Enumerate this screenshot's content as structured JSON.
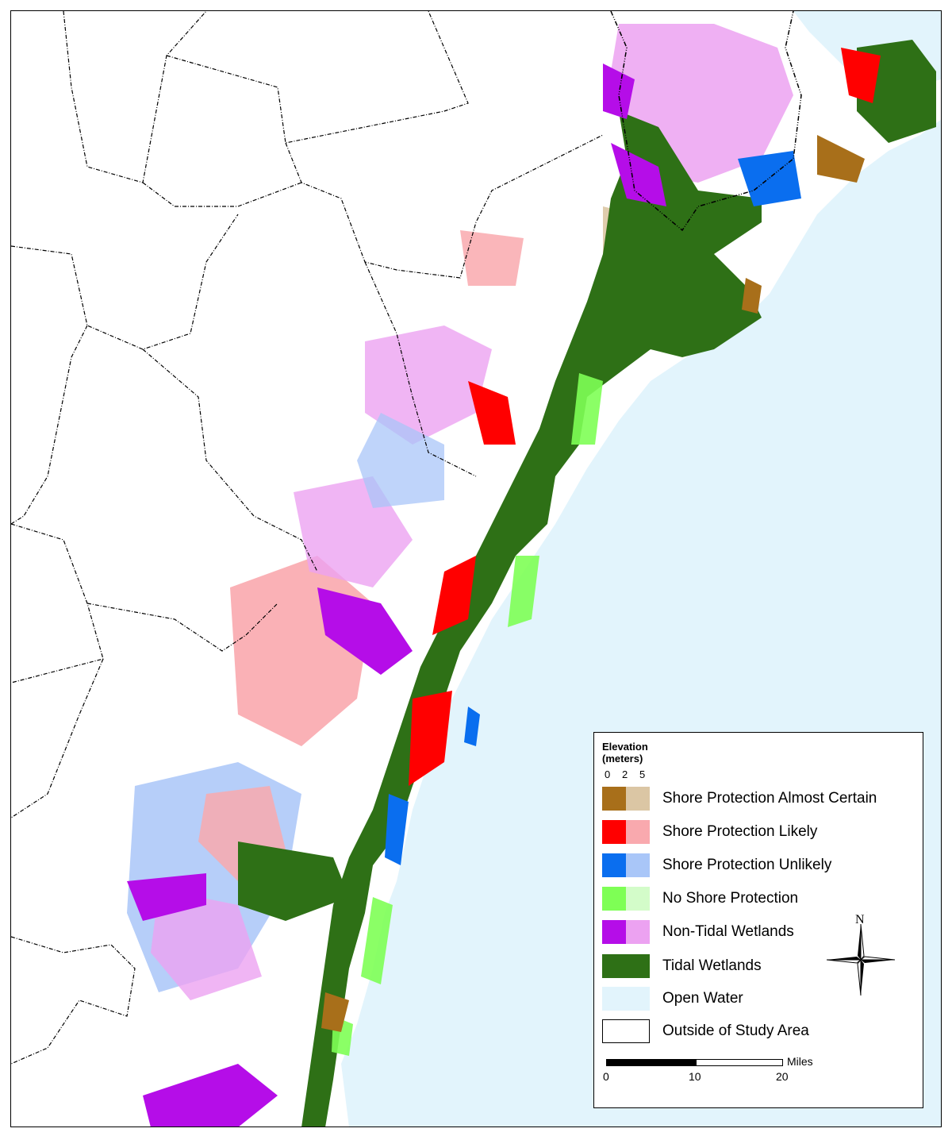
{
  "colors": {
    "shore_almost_certain_0_2": "#a86f1a",
    "shore_almost_certain_2_5": "#dbc6a4",
    "shore_likely_0_2": "#ff0000",
    "shore_likely_2_5": "#f9a9ae",
    "shore_unlikely_0_2": "#0a6eef",
    "shore_unlikely_2_5": "#a9c6f8",
    "no_protection_0_2": "#7eff55",
    "no_protection_2_5": "#d3fcc9",
    "non_tidal_0_2": "#b50de8",
    "non_tidal_2_5": "#eca2f1",
    "tidal_wetlands": "#2e7016",
    "open_water": "#e2f4fc",
    "outside_study_area": "#ffffff",
    "county_boundary": "#000000",
    "state_boundary": "#000000"
  },
  "legend": {
    "title_line1": "Elevation",
    "title_line2": "(meters)",
    "ticks": [
      "0",
      "2",
      "5"
    ],
    "items": [
      {
        "label": "Shore Protection Almost Certain",
        "colors": [
          "#a86f1a",
          "#dbc6a4"
        ]
      },
      {
        "label": "Shore Protection Likely",
        "colors": [
          "#ff0000",
          "#f9a9ae"
        ]
      },
      {
        "label": "Shore Protection Unlikely",
        "colors": [
          "#0a6eef",
          "#a9c6f8"
        ]
      },
      {
        "label": "No Shore Protection",
        "colors": [
          "#7eff55",
          "#d3fcc9"
        ]
      },
      {
        "label": "Non-Tidal Wetlands",
        "colors": [
          "#b50de8",
          "#eca2f1"
        ]
      },
      {
        "label": "Tidal Wetlands",
        "colors": [
          "#2e7016"
        ]
      },
      {
        "label": "Open Water",
        "colors": [
          "#e2f4fc"
        ]
      },
      {
        "label": "Outside of Study Area",
        "colors": [
          "#ffffff"
        ]
      }
    ]
  },
  "compass": {
    "north_label": "N"
  },
  "scale_bar": {
    "ticks": [
      "0",
      "10",
      "20"
    ],
    "unit": "Miles"
  }
}
